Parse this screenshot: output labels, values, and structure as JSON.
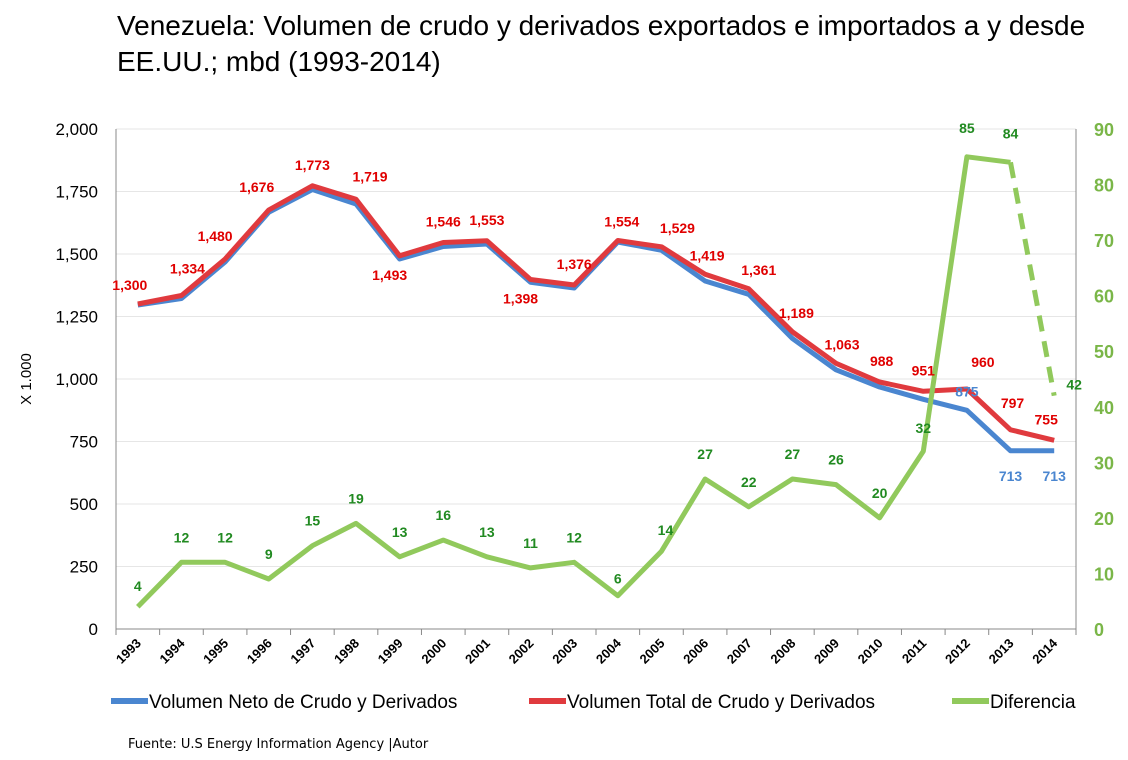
{
  "title": "Venezuela: Volumen de crudo y derivados exportados e importados  a y desde EE.UU.; mbd  (1993-2014)",
  "source": "Fuente: U.S Energy Information Agency   |Autor",
  "colors": {
    "neto": "#4a86d0",
    "total": "#e03a3e",
    "diferencia": "#91c95c",
    "label_total": "#e00000",
    "label_neto": "#4a86d0",
    "label_dif": "#218a21",
    "right_axis": "#7ab648"
  },
  "chart_data": {
    "type": "line",
    "xlabel": "",
    "ylabel": "X 1.000",
    "ylim": [
      0,
      2000
    ],
    "y2lim": [
      0,
      90
    ],
    "yticks": [
      0,
      250,
      500,
      750,
      1000,
      1250,
      1500,
      1750,
      2000
    ],
    "ytick_labels": [
      "0",
      "250",
      "500",
      "750",
      "1,000",
      "1,250",
      "1,500",
      "1,750",
      "2,000"
    ],
    "y2ticks": [
      0,
      10,
      20,
      30,
      40,
      50,
      60,
      70,
      80,
      90
    ],
    "y2tick_labels": [
      "0",
      "10",
      "20",
      "30",
      "40",
      "50",
      "60",
      "70",
      "80",
      "90"
    ],
    "grid": true,
    "legend_position": "bottom",
    "categories": [
      "1993",
      "1994",
      "1995",
      "1996",
      "1997",
      "1998",
      "1999",
      "2000",
      "2001",
      "2002",
      "2003",
      "2004",
      "2005",
      "2006",
      "2007",
      "2008",
      "2009",
      "2010",
      "2011",
      "2012",
      "2013",
      "2014"
    ],
    "series": [
      {
        "name": "Volumen Neto de Crudo y Derivados",
        "axis": "left",
        "color": "#4a86d0",
        "values": [
          1296,
          1322,
          1468,
          1667,
          1758,
          1700,
          1480,
          1530,
          1540,
          1387,
          1364,
          1548,
          1515,
          1392,
          1339,
          1162,
          1037,
          968,
          919,
          875,
          713,
          713
        ],
        "labels": [
          "",
          "",
          "",
          "",
          "",
          "",
          "",
          "",
          "",
          "",
          "",
          "",
          "",
          "",
          "",
          "",
          "",
          "",
          "",
          "875",
          "713",
          "713"
        ]
      },
      {
        "name": "Volumen Total  de Crudo y Derivados",
        "axis": "left",
        "color": "#e03a3e",
        "values": [
          1300,
          1334,
          1480,
          1676,
          1773,
          1719,
          1493,
          1546,
          1553,
          1398,
          1376,
          1554,
          1529,
          1419,
          1361,
          1189,
          1063,
          988,
          951,
          960,
          797,
          755
        ],
        "labels": [
          "1,300",
          "1,334",
          "1,480",
          "1,676",
          "1,773",
          "1,719",
          "1,493",
          "1,546",
          "1,553",
          "1,398",
          "1,376",
          "1,554",
          "1,529",
          "1,419",
          "1,361",
          "1,189",
          "1,063",
          "988",
          "951",
          "960",
          "797",
          "755"
        ]
      },
      {
        "name": "Diferencia",
        "axis": "right",
        "color": "#91c95c",
        "values": [
          4,
          12,
          12,
          9,
          15,
          19,
          13,
          16,
          13,
          11,
          12,
          6,
          14,
          27,
          22,
          27,
          26,
          20,
          32,
          85,
          84,
          42
        ],
        "labels": [
          "4",
          "12",
          "12",
          "9",
          "15",
          "19",
          "13",
          "16",
          "13",
          "11",
          "12",
          "6",
          "14",
          "27",
          "22",
          "27",
          "26",
          "20",
          "32",
          "85",
          "84",
          "42"
        ]
      }
    ]
  }
}
